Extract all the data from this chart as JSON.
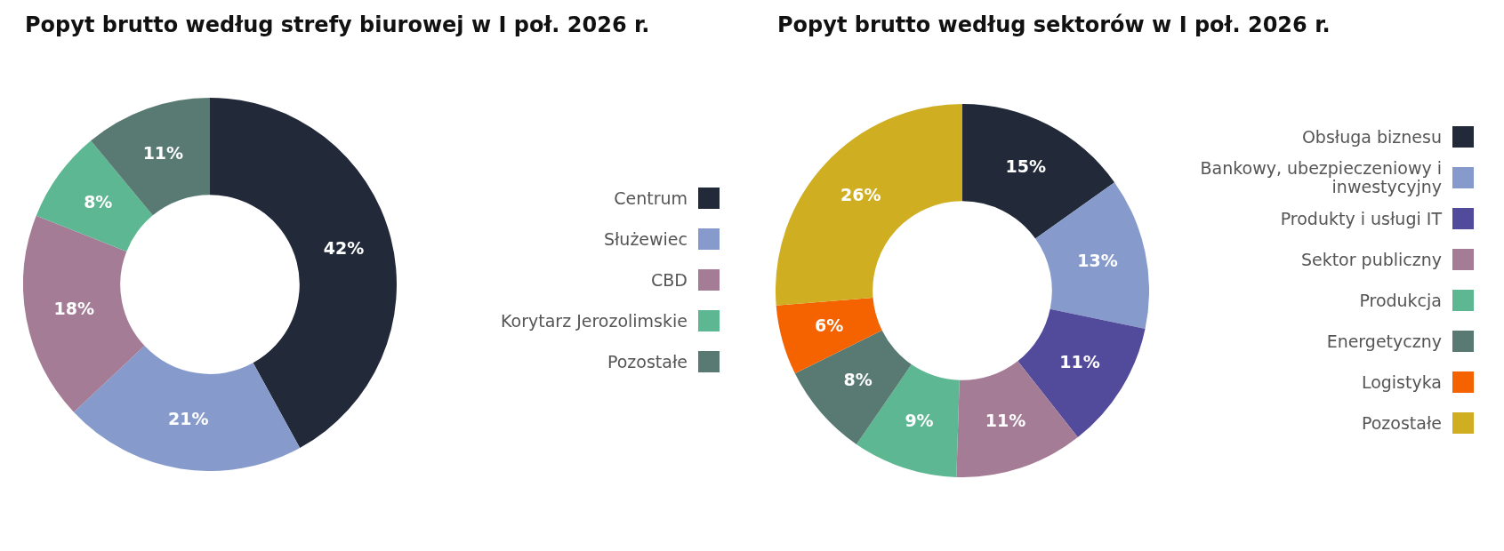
{
  "chart_data": [
    {
      "type": "donut",
      "title": "Popyt brutto według strefy biurowej w I poł. 2026 r.",
      "categories": [
        "Centrum",
        "Służewiec",
        "CBD",
        "Korytarz Jerozolimskie",
        "Pozostałe"
      ],
      "values": [
        42,
        21,
        18,
        8,
        11
      ],
      "value_labels": [
        "42%",
        "21%",
        "18%",
        "8%",
        "11%"
      ],
      "colors": [
        "#222a3a",
        "#869bcc",
        "#a57c96",
        "#5db792",
        "#587a72"
      ],
      "legend": "right"
    },
    {
      "type": "donut",
      "title": "Popyt brutto według sektorów w I poł. 2026 r.",
      "categories": [
        "Obsługa biznesu",
        "Bankowy, ubezpieczeniowy i inwestycyjny",
        "Produkty i usługi IT",
        "Sektor publiczny",
        "Produkcja",
        "Energetyczny",
        "Logistyka",
        "Pozostałe"
      ],
      "values": [
        15,
        13,
        11,
        11,
        9,
        8,
        6,
        26
      ],
      "value_labels": [
        "15%",
        "13%",
        "11%",
        "11%",
        "9%",
        "8%",
        "6%",
        "26%"
      ],
      "colors": [
        "#222a3a",
        "#869bcc",
        "#524a9a",
        "#a57c96",
        "#5db792",
        "#587a72",
        "#f46300",
        "#cfae22"
      ],
      "legend": "right"
    }
  ]
}
